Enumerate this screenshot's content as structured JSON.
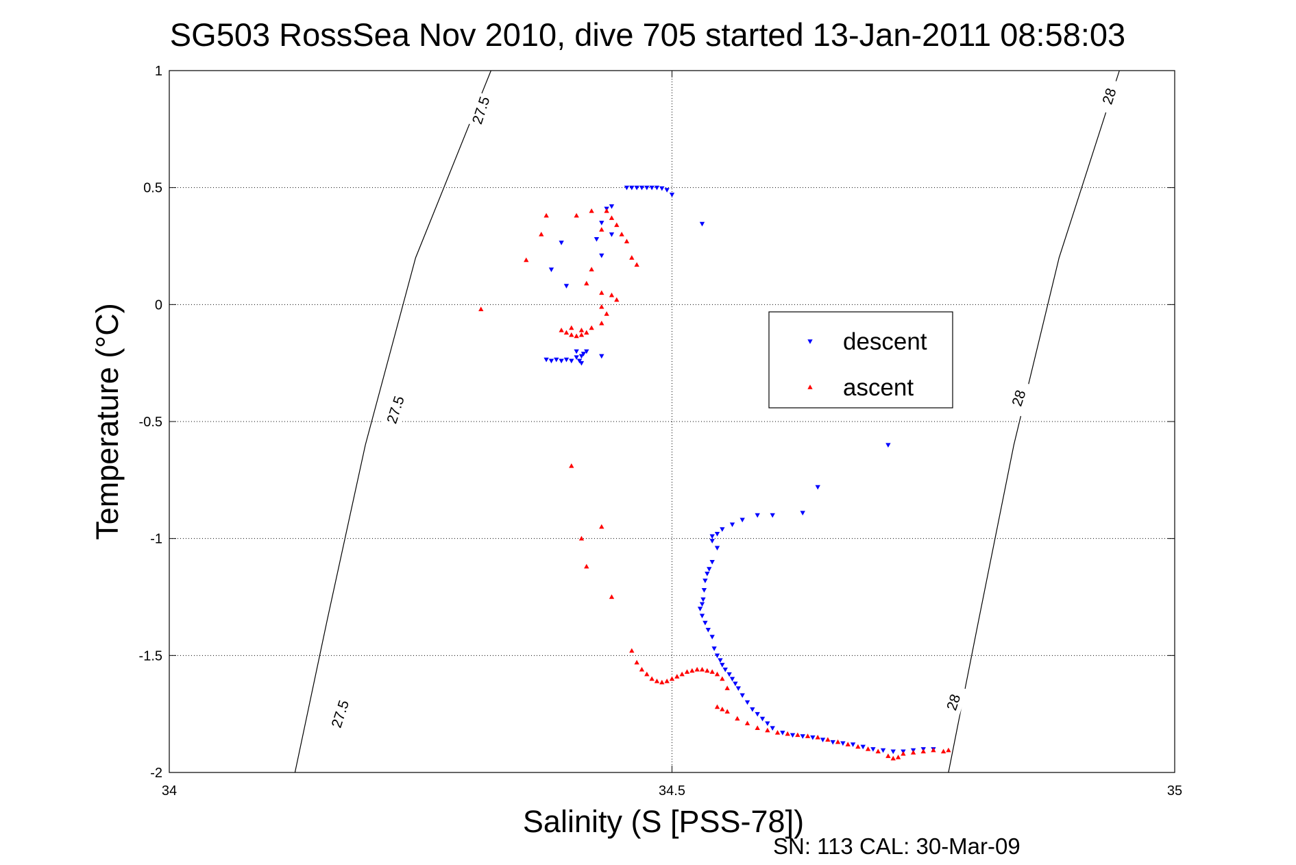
{
  "chart_data": {
    "type": "scatter",
    "title": "SG503 RossSea Nov 2010, dive 705 started 13-Jan-2011 08:58:03",
    "xlabel": "Salinity (S [PSS-78])",
    "ylabel": "Temperature (°C)",
    "xlim": [
      34,
      35
    ],
    "ylim": [
      -2,
      1
    ],
    "xticks": [
      34,
      34.5,
      35
    ],
    "xtick_labels": [
      "34",
      "34.5",
      "35"
    ],
    "yticks": [
      1,
      0.5,
      0,
      -0.5,
      -1,
      -1.5,
      -2
    ],
    "ytick_labels": [
      "1",
      "0.5",
      "0",
      "-0.5",
      "-1",
      "-1.5",
      "-2"
    ],
    "grid": true,
    "legend_position": "center-right",
    "footer": "SN: 113  CAL: 30-Mar-09",
    "contours": [
      {
        "label": "27.5",
        "label_positions": [
          [
            34.31,
            0.83
          ],
          [
            34.225,
            -0.45
          ],
          [
            34.17,
            -1.75
          ]
        ]
      },
      {
        "label": "28",
        "label_positions": [
          [
            34.935,
            0.89
          ],
          [
            34.845,
            -0.4
          ],
          [
            34.78,
            -1.7
          ]
        ]
      }
    ],
    "contour_lines": [
      {
        "points": [
          [
            34.32,
            1.0
          ],
          [
            34.245,
            0.2
          ],
          [
            34.195,
            -0.6
          ],
          [
            34.157,
            -1.35
          ],
          [
            34.125,
            -2.0
          ]
        ]
      },
      {
        "points": [
          [
            34.945,
            1.0
          ],
          [
            34.885,
            0.2
          ],
          [
            34.84,
            -0.6
          ],
          [
            34.805,
            -1.35
          ],
          [
            34.775,
            -2.0
          ]
        ]
      }
    ],
    "series": [
      {
        "name": "descent",
        "color": "#0000ff",
        "marker": "triangle-down",
        "points": [
          [
            34.455,
            0.5
          ],
          [
            34.46,
            0.5
          ],
          [
            34.465,
            0.5
          ],
          [
            34.47,
            0.5
          ],
          [
            34.475,
            0.5
          ],
          [
            34.48,
            0.5
          ],
          [
            34.485,
            0.5
          ],
          [
            34.49,
            0.497
          ],
          [
            34.495,
            0.49
          ],
          [
            34.5,
            0.47
          ],
          [
            34.53,
            0.345
          ],
          [
            34.44,
            0.42
          ],
          [
            34.435,
            0.41
          ],
          [
            34.43,
            0.35
          ],
          [
            34.44,
            0.3
          ],
          [
            34.425,
            0.28
          ],
          [
            34.43,
            0.21
          ],
          [
            34.39,
            0.265
          ],
          [
            34.38,
            0.15
          ],
          [
            34.395,
            0.08
          ],
          [
            34.415,
            -0.2
          ],
          [
            34.41,
            -0.22
          ],
          [
            34.408,
            -0.24
          ],
          [
            34.405,
            -0.225
          ],
          [
            34.4,
            -0.24
          ],
          [
            34.395,
            -0.235
          ],
          [
            34.39,
            -0.24
          ],
          [
            34.385,
            -0.235
          ],
          [
            34.38,
            -0.24
          ],
          [
            34.375,
            -0.235
          ],
          [
            34.41,
            -0.25
          ],
          [
            34.412,
            -0.21
          ],
          [
            34.405,
            -0.2
          ],
          [
            34.43,
            -0.22
          ],
          [
            34.715,
            -0.6
          ],
          [
            34.645,
            -0.78
          ],
          [
            34.63,
            -0.89
          ],
          [
            34.6,
            -0.9
          ],
          [
            34.585,
            -0.9
          ],
          [
            34.57,
            -0.92
          ],
          [
            34.56,
            -0.94
          ],
          [
            34.55,
            -0.96
          ],
          [
            34.545,
            -0.98
          ],
          [
            34.54,
            -0.99
          ],
          [
            34.54,
            -1.01
          ],
          [
            34.545,
            -1.04
          ],
          [
            34.54,
            -1.1
          ],
          [
            34.537,
            -1.13
          ],
          [
            34.535,
            -1.15
          ],
          [
            34.533,
            -1.18
          ],
          [
            34.532,
            -1.22
          ],
          [
            34.531,
            -1.26
          ],
          [
            34.53,
            -1.28
          ],
          [
            34.528,
            -1.3
          ],
          [
            34.53,
            -1.33
          ],
          [
            34.533,
            -1.36
          ],
          [
            34.536,
            -1.39
          ],
          [
            34.54,
            -1.42
          ],
          [
            34.542,
            -1.47
          ],
          [
            34.545,
            -1.5
          ],
          [
            34.548,
            -1.52
          ],
          [
            34.55,
            -1.54
          ],
          [
            34.553,
            -1.56
          ],
          [
            34.557,
            -1.58
          ],
          [
            34.56,
            -1.6
          ],
          [
            34.563,
            -1.62
          ],
          [
            34.566,
            -1.64
          ],
          [
            34.57,
            -1.67
          ],
          [
            34.575,
            -1.7
          ],
          [
            34.58,
            -1.73
          ],
          [
            34.585,
            -1.75
          ],
          [
            34.59,
            -1.77
          ],
          [
            34.595,
            -1.79
          ],
          [
            34.6,
            -1.81
          ],
          [
            34.61,
            -1.83
          ],
          [
            34.62,
            -1.84
          ],
          [
            34.63,
            -1.845
          ],
          [
            34.64,
            -1.85
          ],
          [
            34.65,
            -1.86
          ],
          [
            34.66,
            -1.87
          ],
          [
            34.67,
            -1.875
          ],
          [
            34.68,
            -1.88
          ],
          [
            34.69,
            -1.89
          ],
          [
            34.7,
            -1.9
          ],
          [
            34.71,
            -1.905
          ],
          [
            34.72,
            -1.91
          ],
          [
            34.73,
            -1.91
          ],
          [
            34.74,
            -1.905
          ],
          [
            34.75,
            -1.9
          ],
          [
            34.76,
            -1.9
          ]
        ]
      },
      {
        "name": "ascent",
        "color": "#ff0000",
        "marker": "triangle-up",
        "points": [
          [
            34.31,
            -0.02
          ],
          [
            34.355,
            0.19
          ],
          [
            34.375,
            0.38
          ],
          [
            34.37,
            0.3
          ],
          [
            34.405,
            0.38
          ],
          [
            34.42,
            0.4
          ],
          [
            34.435,
            0.4
          ],
          [
            34.44,
            0.37
          ],
          [
            34.445,
            0.34
          ],
          [
            34.45,
            0.3
          ],
          [
            34.43,
            0.32
          ],
          [
            34.455,
            0.27
          ],
          [
            34.46,
            0.2
          ],
          [
            34.465,
            0.17
          ],
          [
            34.42,
            0.15
          ],
          [
            34.415,
            0.09
          ],
          [
            34.43,
            0.05
          ],
          [
            34.44,
            0.04
          ],
          [
            34.445,
            0.02
          ],
          [
            34.43,
            -0.01
          ],
          [
            34.435,
            -0.04
          ],
          [
            34.43,
            -0.08
          ],
          [
            34.42,
            -0.1
          ],
          [
            34.415,
            -0.12
          ],
          [
            34.41,
            -0.13
          ],
          [
            34.405,
            -0.135
          ],
          [
            34.4,
            -0.13
          ],
          [
            34.395,
            -0.12
          ],
          [
            34.39,
            -0.11
          ],
          [
            34.4,
            -0.1
          ],
          [
            34.41,
            -0.11
          ],
          [
            34.4,
            -0.69
          ],
          [
            34.43,
            -0.95
          ],
          [
            34.41,
            -1.0
          ],
          [
            34.415,
            -1.12
          ],
          [
            34.44,
            -1.25
          ],
          [
            34.46,
            -1.48
          ],
          [
            34.465,
            -1.53
          ],
          [
            34.47,
            -1.56
          ],
          [
            34.475,
            -1.58
          ],
          [
            34.48,
            -1.6
          ],
          [
            34.485,
            -1.61
          ],
          [
            34.49,
            -1.615
          ],
          [
            34.495,
            -1.61
          ],
          [
            34.5,
            -1.6
          ],
          [
            34.505,
            -1.59
          ],
          [
            34.51,
            -1.58
          ],
          [
            34.515,
            -1.57
          ],
          [
            34.52,
            -1.565
          ],
          [
            34.525,
            -1.56
          ],
          [
            34.53,
            -1.56
          ],
          [
            34.535,
            -1.565
          ],
          [
            34.54,
            -1.57
          ],
          [
            34.545,
            -1.58
          ],
          [
            34.55,
            -1.6
          ],
          [
            34.555,
            -1.64
          ],
          [
            34.545,
            -1.72
          ],
          [
            34.55,
            -1.73
          ],
          [
            34.555,
            -1.74
          ],
          [
            34.565,
            -1.77
          ],
          [
            34.575,
            -1.79
          ],
          [
            34.585,
            -1.81
          ],
          [
            34.595,
            -1.82
          ],
          [
            34.605,
            -1.83
          ],
          [
            34.615,
            -1.835
          ],
          [
            34.625,
            -1.84
          ],
          [
            34.635,
            -1.845
          ],
          [
            34.645,
            -1.85
          ],
          [
            34.655,
            -1.86
          ],
          [
            34.665,
            -1.87
          ],
          [
            34.675,
            -1.88
          ],
          [
            34.685,
            -1.89
          ],
          [
            34.695,
            -1.9
          ],
          [
            34.705,
            -1.91
          ],
          [
            34.715,
            -1.93
          ],
          [
            34.72,
            -1.94
          ],
          [
            34.725,
            -1.935
          ],
          [
            34.73,
            -1.92
          ],
          [
            34.74,
            -1.915
          ],
          [
            34.75,
            -1.91
          ],
          [
            34.76,
            -1.905
          ],
          [
            34.77,
            -1.91
          ],
          [
            34.775,
            -1.905
          ]
        ]
      }
    ]
  }
}
